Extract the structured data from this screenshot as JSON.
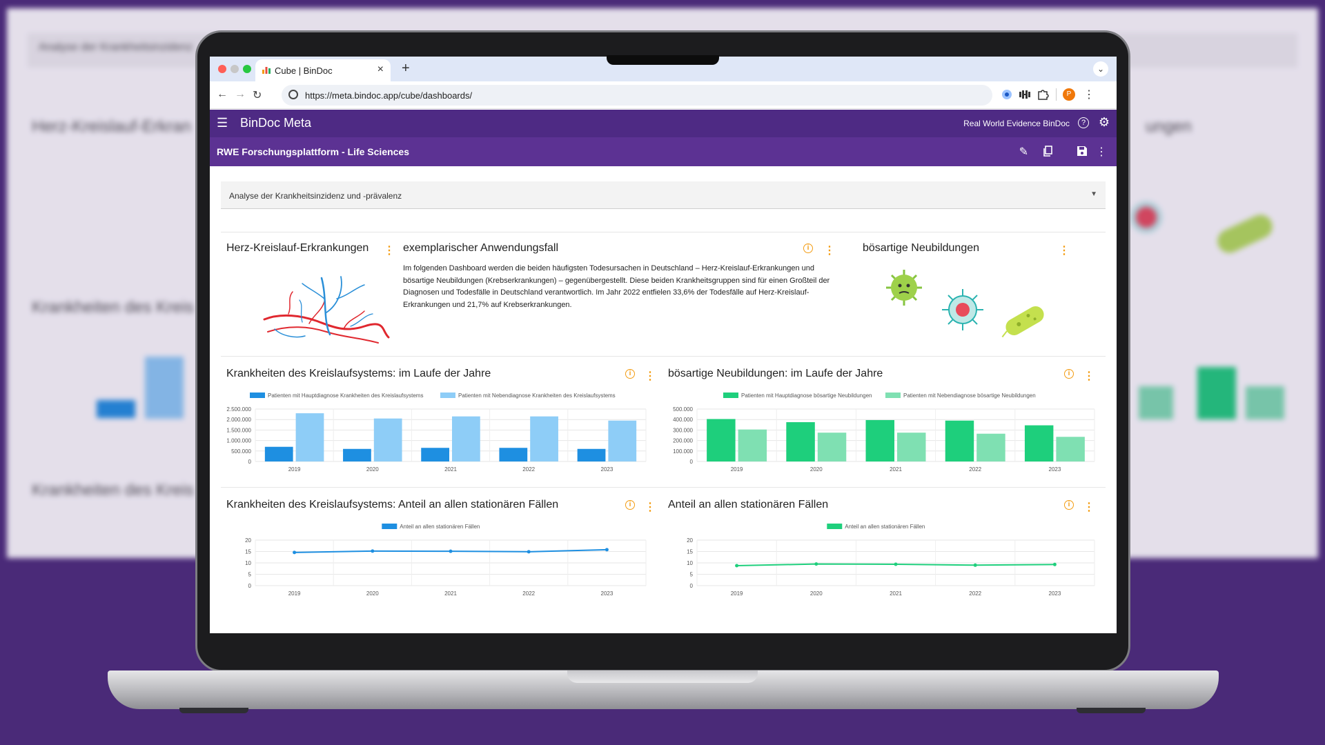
{
  "browser": {
    "tab_title": "Cube | BinDoc",
    "tab_close": "×",
    "new_tab": "+",
    "url": "https://meta.bindoc.app/cube/dashboards/",
    "avatar_letter": "P"
  },
  "app": {
    "brand": "BinDoc Meta",
    "org": "Real World Evidence BinDoc",
    "dashboard_title": "RWE Forschungsplattform - Life Sciences"
  },
  "selector": {
    "value": "Analyse der Krankheitsinzidenz und -prävalenz"
  },
  "cards": {
    "herz": {
      "title": "Herz-Kreislauf-Erkrankungen"
    },
    "anwendung": {
      "title": "exemplarischer Anwendungsfall",
      "text": "Im folgenden Dashboard werden die beiden häufigsten Todesursachen in Deutschland – Herz-Kreislauf-Erkrankungen und bösartige Neubildungen (Krebserkrankungen) – gegenübergestellt. Diese beiden Krankheitsgruppen sind für einen Großteil der Diagnosen und Todesfälle in Deutschland verantwortlich. Im Jahr 2022 entfielen 33,6% der Todesfälle auf Herz-Kreislauf-Erkrankungen und 21,7% auf Krebserkrankungen."
    },
    "neubildungen": {
      "title": "bösartige Neubildungen"
    },
    "kreislauf_jahre": {
      "title": "Krankheiten des Kreislaufsystems: im Laufe der Jahre"
    },
    "neubildungen_jahre": {
      "title": "bösartige Neubildungen: im Laufe der Jahre"
    },
    "kreislauf_anteil": {
      "title": "Krankheiten des Kreislaufsystems: Anteil an allen stationären Fällen"
    },
    "anteil": {
      "title": "Anteil an allen stationären Fällen"
    }
  },
  "background": {
    "t1": "Analyse der Krankheitsinzidenz",
    "t2": "Herz-Kreislauf-Erkran",
    "t3": "Krankheiten des Kreis",
    "t4": "Krankheiten des Kreis",
    "t5": "ungen"
  },
  "colors": {
    "purple": "#4e2a84",
    "blue_dark": "#1e8fe1",
    "blue_light": "#8ecdf7",
    "green_dark": "#1ecf7c",
    "green_light": "#7fe0b2",
    "accent": "#f39c12"
  },
  "chart_data": [
    {
      "type": "bar",
      "categories": [
        "2019",
        "2020",
        "2021",
        "2022",
        "2023"
      ],
      "series": [
        {
          "name": "Patienten mit Hauptdiagnose Krankheiten des Kreislaufsystems",
          "values": [
            700000,
            600000,
            650000,
            650000,
            600000
          ]
        },
        {
          "name": "Patienten mit Nebendiagnose Krankheiten des Kreislaufsystems",
          "values": [
            2300000,
            2050000,
            2150000,
            2150000,
            1950000
          ]
        }
      ],
      "ylim": [
        0,
        2500000
      ],
      "yticks": [
        "0",
        "500.000",
        "1.000.000",
        "1.500.000",
        "2.000.000",
        "2.500.000"
      ],
      "legend": "top",
      "grid": true
    },
    {
      "type": "bar",
      "categories": [
        "2019",
        "2020",
        "2021",
        "2022",
        "2023"
      ],
      "series": [
        {
          "name": "Patienten mit Hauptdiagnose bösartige Neubildungen",
          "values": [
            405000,
            375000,
            395000,
            390000,
            345000
          ]
        },
        {
          "name": "Patienten mit Nebendiagnose bösartige Neubildungen",
          "values": [
            305000,
            275000,
            275000,
            265000,
            235000
          ]
        }
      ],
      "ylim": [
        0,
        500000
      ],
      "yticks": [
        "0",
        "100.000",
        "200.000",
        "300.000",
        "400.000",
        "500.000"
      ],
      "legend": "top",
      "grid": true
    },
    {
      "type": "line",
      "x": [
        "2019",
        "2020",
        "2021",
        "2022",
        "2023"
      ],
      "series": [
        {
          "name": "Anteil an allen stationären Fällen",
          "values": [
            14.6,
            15.2,
            15.1,
            14.9,
            15.8
          ]
        }
      ],
      "ylim": [
        0,
        20
      ],
      "yticks": [
        "0",
        "5",
        "10",
        "15",
        "20"
      ],
      "legend": "top",
      "grid": true
    },
    {
      "type": "line",
      "x": [
        "2019",
        "2020",
        "2021",
        "2022",
        "2023"
      ],
      "series": [
        {
          "name": "Anteil an allen stationären Fällen",
          "values": [
            8.8,
            9.5,
            9.4,
            9.0,
            9.3
          ]
        }
      ],
      "ylim": [
        0,
        20
      ],
      "yticks": [
        "0",
        "5",
        "10",
        "15",
        "20"
      ],
      "legend": "top",
      "grid": true
    }
  ]
}
